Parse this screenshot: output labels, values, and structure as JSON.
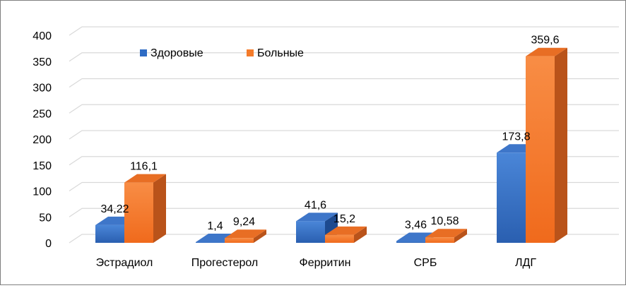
{
  "chart_data": {
    "type": "bar",
    "style": "3d-clustered-column",
    "categories": [
      "Эстрадиол",
      "Прогестерол",
      "Ферритин",
      "СРБ",
      "ЛДГ"
    ],
    "series": [
      {
        "name": "Здоровые",
        "values": [
          34.22,
          1.4,
          41.6,
          3.46,
          173.8
        ],
        "labels": [
          "34,22",
          "1,4",
          "41,6",
          "3,46",
          "173,8"
        ],
        "color": "#2e6bc4"
      },
      {
        "name": "Больные",
        "values": [
          116.1,
          9.24,
          15.2,
          10.58,
          359.6
        ],
        "labels": [
          "116,1",
          "9,24",
          "15,2",
          "10,58",
          "359,6"
        ],
        "color": "#f47b2a"
      }
    ],
    "y_ticks": [
      "0",
      "50",
      "100",
      "150",
      "200",
      "250",
      "300",
      "350",
      "400"
    ],
    "ylim": [
      0,
      400
    ],
    "grid": true,
    "legend_position": "top-left"
  }
}
